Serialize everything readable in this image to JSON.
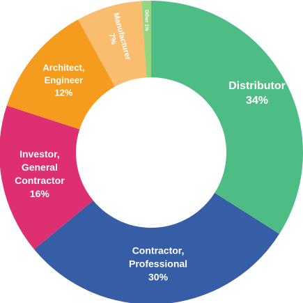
{
  "chart_data": {
    "type": "pie",
    "variant": "donut",
    "start_angle_deg": 0,
    "direction": "clockwise",
    "slices": [
      {
        "name": "Distributor",
        "lines": [
          "Distributor",
          "34%"
        ],
        "value": 34,
        "color": "#4DBD85"
      },
      {
        "name": "Contractor, Professional",
        "lines": [
          "Contractor,",
          "Professional",
          "30%"
        ],
        "value": 30,
        "color": "#365EA6"
      },
      {
        "name": "Investor, General Contractor",
        "lines": [
          "Investor,",
          "General",
          "Contractor",
          "16%"
        ],
        "value": 16,
        "color": "#DF2F73"
      },
      {
        "name": "Architect, Engineer",
        "lines": [
          "Architect,",
          "Engineer",
          "12%"
        ],
        "value": 12,
        "color": "#F59C1F"
      },
      {
        "name": "Manufacturer",
        "lines": [
          "Manufacturer",
          "7%"
        ],
        "value": 7,
        "color": "#F8BD6E"
      },
      {
        "name": "Other",
        "lines": [
          "Other 1%"
        ],
        "value": 1,
        "color": "#94D67E"
      }
    ]
  }
}
